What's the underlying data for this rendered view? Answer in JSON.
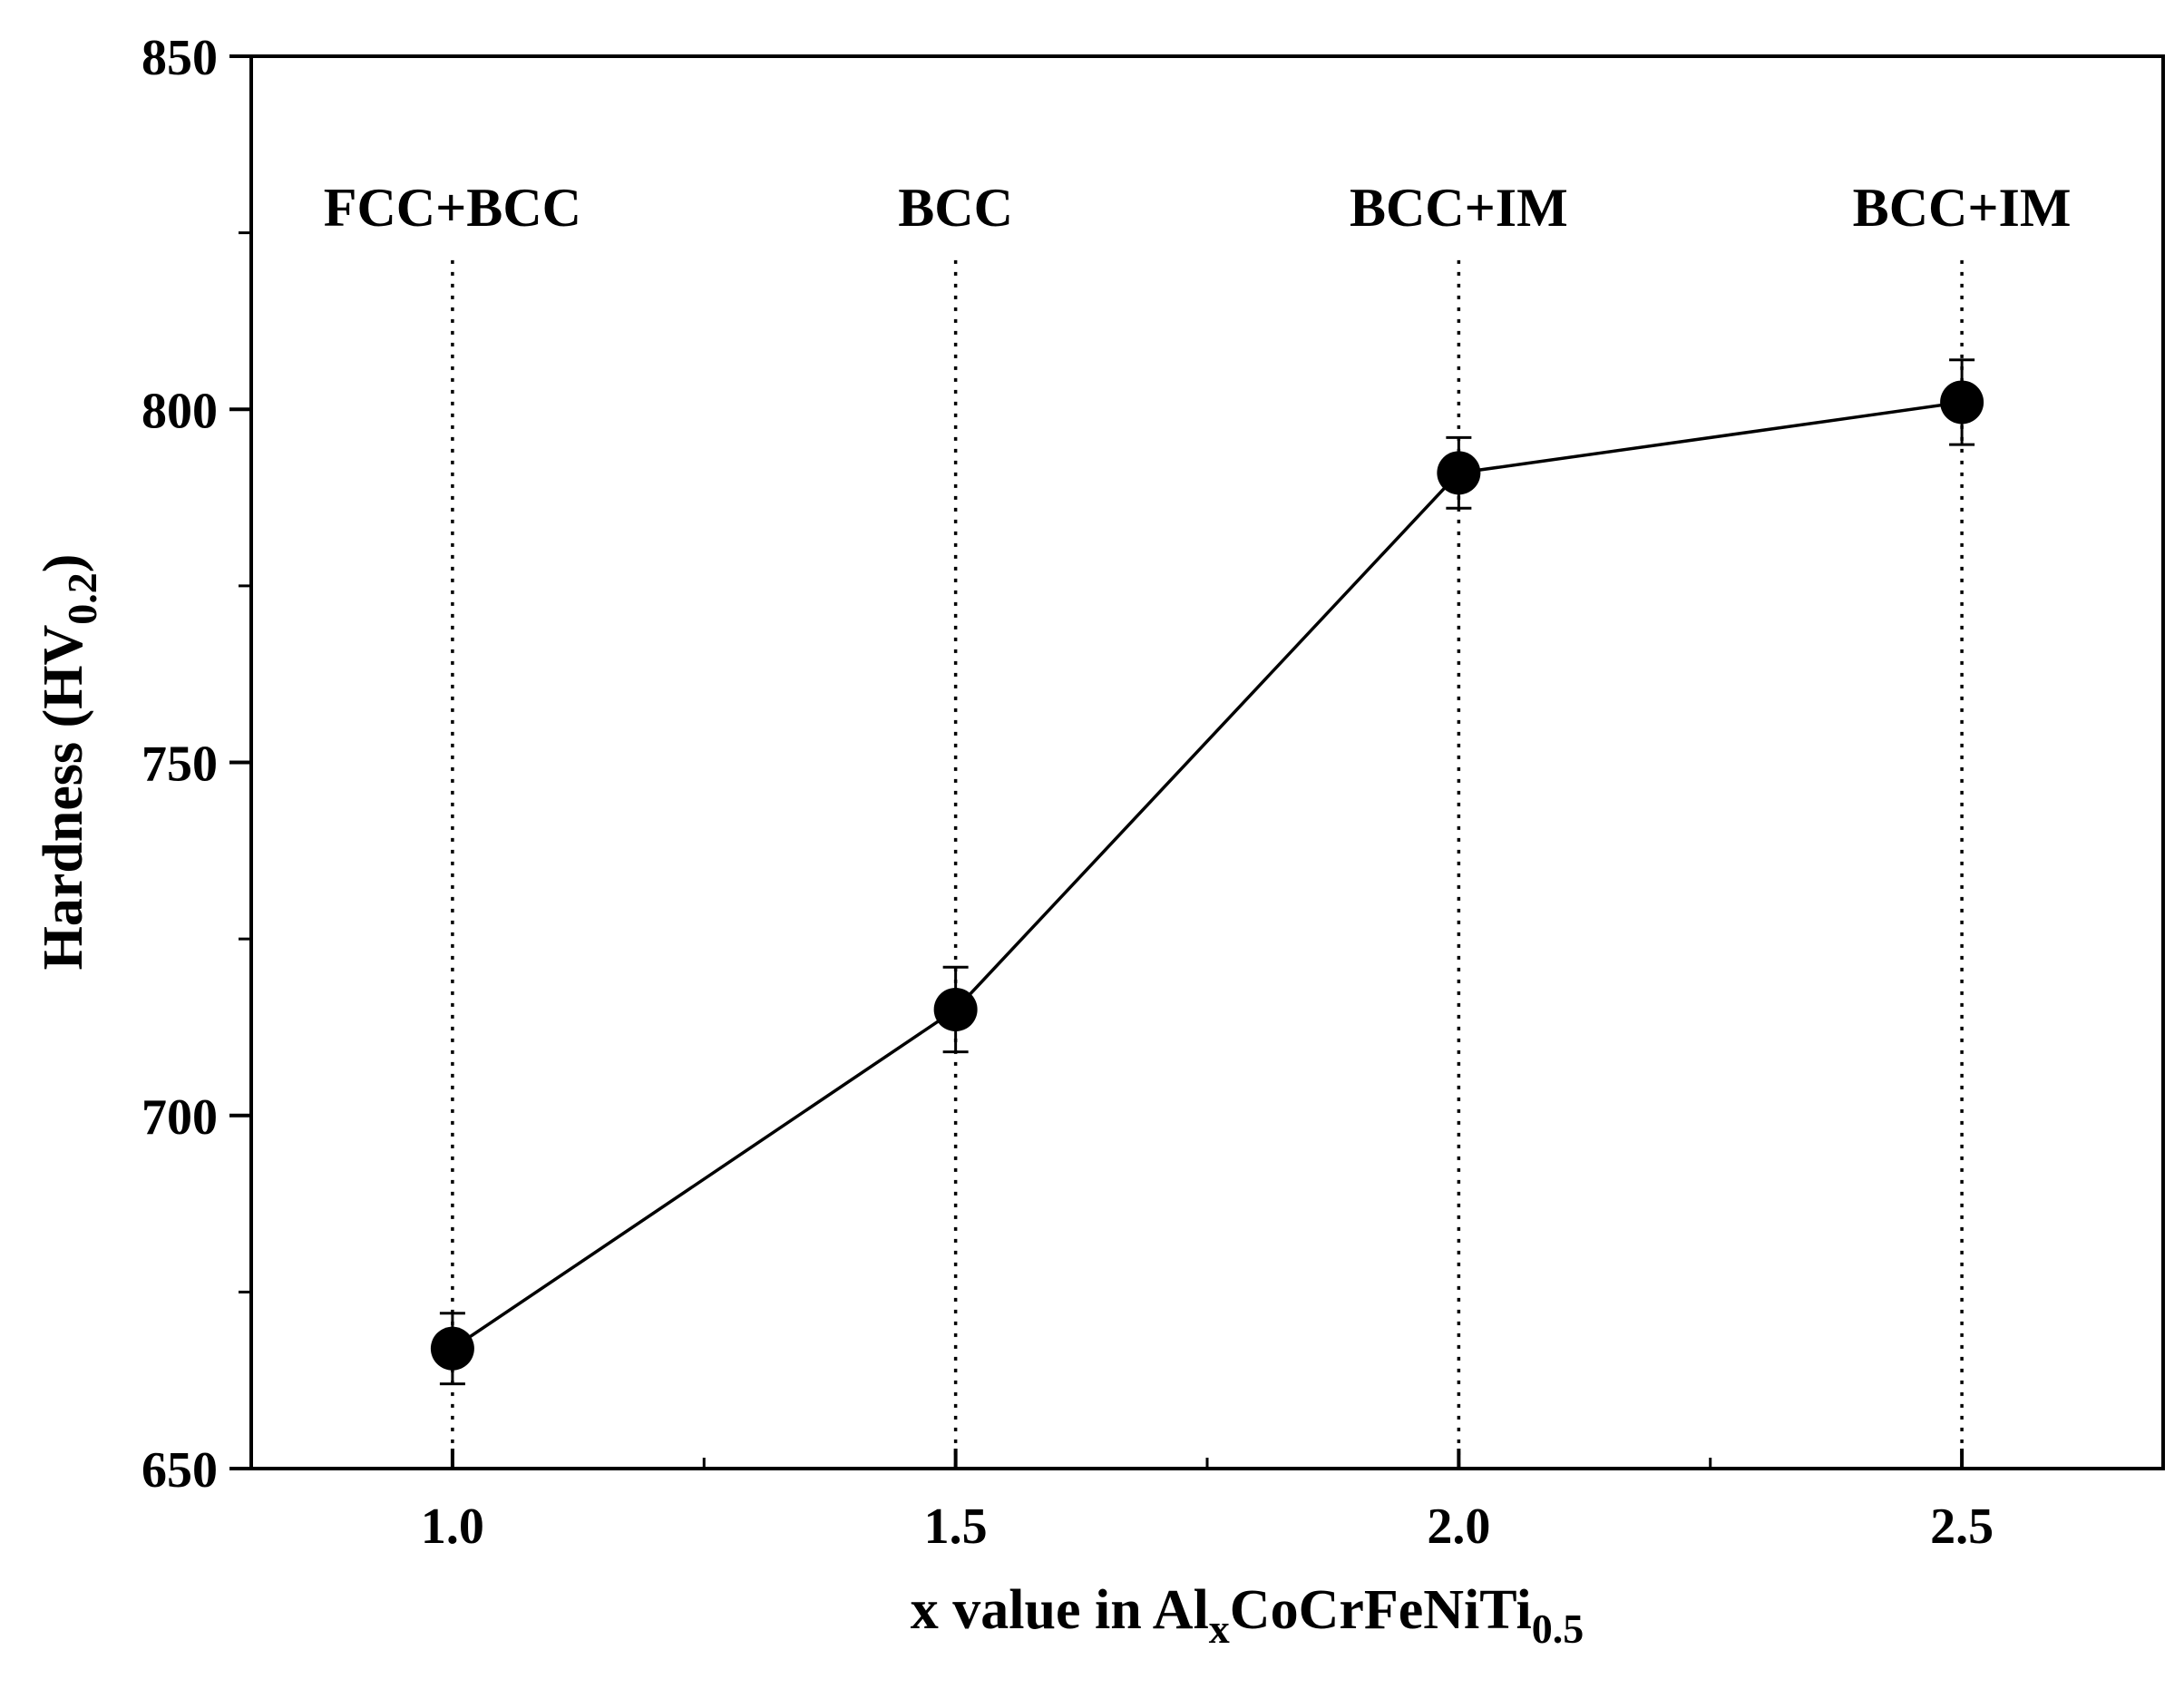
{
  "chart_data": {
    "type": "scatter",
    "xlabel": {
      "main": "x value in Al",
      "sub1": "x",
      "mid": "CoCrFeNiTi",
      "sub2": "0.5"
    },
    "ylabel": {
      "main": "Hardness (HV",
      "sub": "0.2",
      "end": ")"
    },
    "xlim": [
      0.8,
      2.7
    ],
    "ylim": [
      650,
      850
    ],
    "x_ticks": [
      1.0,
      1.5,
      2.0,
      2.5
    ],
    "x_tick_labels": [
      "1.0",
      "1.5",
      "2.0",
      "2.5"
    ],
    "x_minor_ticks": [
      1.25,
      1.75,
      2.25
    ],
    "y_ticks": [
      650,
      700,
      750,
      800,
      850
    ],
    "y_tick_labels": [
      "650",
      "700",
      "750",
      "800",
      "850"
    ],
    "y_minor_ticks": [
      675,
      725,
      775,
      825
    ],
    "grid": false,
    "series": [
      {
        "marker": "filled-circle",
        "line": "solid",
        "color": "#000000",
        "x": [
          1.0,
          1.5,
          2.0,
          2.5
        ],
        "y": [
          667,
          715,
          791,
          801
        ],
        "error": [
          5,
          6,
          5,
          6
        ]
      }
    ],
    "phase_annotations": [
      {
        "x": 1.0,
        "label": "FCC+BCC"
      },
      {
        "x": 1.5,
        "label": "BCC"
      },
      {
        "x": 2.0,
        "label": "BCC+IM"
      },
      {
        "x": 2.5,
        "label": "BCC+IM"
      }
    ],
    "phase_label_y": 826
  }
}
